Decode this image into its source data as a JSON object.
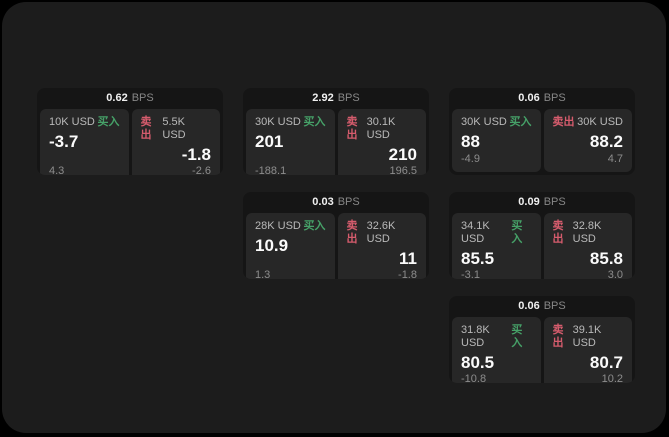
{
  "labels": {
    "bps_unit": "BPS",
    "buy": "买入",
    "sell": "卖出"
  },
  "colors": {
    "buy": "#46a168",
    "sell": "#d65c6d",
    "panel_background": "#1c1c1c",
    "card_background": "#151515",
    "pane_background": "#272727"
  },
  "cards": [
    {
      "bps": "0.62",
      "buy": {
        "amount": "10K USD",
        "price": "-3.7",
        "delta": "4.3"
      },
      "sell": {
        "amount": "5.5K USD",
        "price": "-1.8",
        "delta": "-2.6"
      }
    },
    {
      "bps": "2.92",
      "buy": {
        "amount": "30K USD",
        "price": "201",
        "delta": "-188.1"
      },
      "sell": {
        "amount": "30.1K USD",
        "price": "210",
        "delta": "196.5"
      }
    },
    {
      "bps": "0.06",
      "buy": {
        "amount": "30K USD",
        "price": "88",
        "delta": "-4.9"
      },
      "sell": {
        "amount": "30K USD",
        "price": "88.2",
        "delta": "4.7"
      }
    },
    {
      "bps": "0.03",
      "buy": {
        "amount": "28K USD",
        "price": "10.9",
        "delta": "1.3"
      },
      "sell": {
        "amount": "32.6K USD",
        "price": "11",
        "delta": "-1.8"
      }
    },
    {
      "bps": "0.09",
      "buy": {
        "amount": "34.1K USD",
        "price": "85.5",
        "delta": "-3.1"
      },
      "sell": {
        "amount": "32.8K USD",
        "price": "85.8",
        "delta": "3.0"
      }
    },
    {
      "bps": "0.06",
      "buy": {
        "amount": "31.8K USD",
        "price": "80.5",
        "delta": "-10.8"
      },
      "sell": {
        "amount": "39.1K USD",
        "price": "80.7",
        "delta": "10.2"
      }
    }
  ]
}
